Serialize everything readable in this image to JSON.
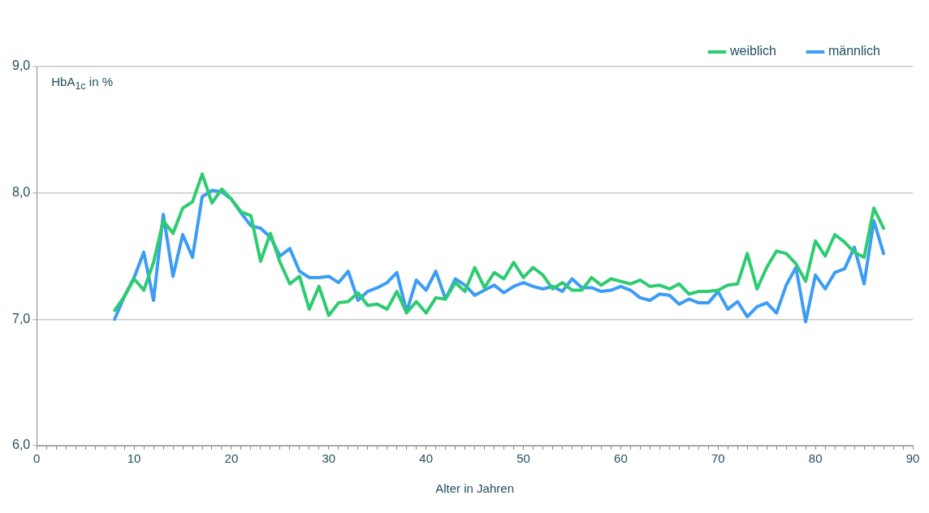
{
  "chart_data": {
    "type": "line",
    "xlabel": "Alter in Jahren",
    "ylabel": "HbA$_{1c}$ in %",
    "x": [
      8,
      9,
      10,
      11,
      12,
      13,
      14,
      15,
      16,
      17,
      18,
      19,
      20,
      21,
      22,
      23,
      24,
      25,
      26,
      27,
      28,
      29,
      30,
      31,
      32,
      33,
      34,
      35,
      36,
      37,
      38,
      39,
      40,
      41,
      42,
      43,
      44,
      45,
      46,
      47,
      48,
      49,
      50,
      51,
      52,
      53,
      54,
      55,
      56,
      57,
      58,
      59,
      60,
      61,
      62,
      63,
      64,
      65,
      66,
      67,
      68,
      69,
      70,
      71,
      72,
      73,
      74,
      75,
      76,
      77,
      78,
      79,
      80,
      81,
      82,
      83,
      84,
      85,
      86,
      87
    ],
    "series": [
      {
        "name": "weiblich",
        "color": "#2ecc71",
        "values": [
          7.07,
          7.18,
          7.32,
          7.23,
          7.45,
          7.78,
          7.68,
          7.88,
          7.93,
          8.15,
          7.92,
          8.03,
          7.95,
          7.85,
          7.82,
          7.46,
          7.68,
          7.45,
          7.28,
          7.34,
          7.08,
          7.26,
          7.03,
          7.13,
          7.14,
          7.21,
          7.11,
          7.12,
          7.08,
          7.22,
          7.05,
          7.14,
          7.05,
          7.17,
          7.16,
          7.29,
          7.22,
          7.41,
          7.25,
          7.37,
          7.32,
          7.45,
          7.33,
          7.41,
          7.35,
          7.24,
          7.29,
          7.23,
          7.23,
          7.33,
          7.27,
          7.32,
          7.3,
          7.28,
          7.31,
          7.26,
          7.27,
          7.24,
          7.28,
          7.2,
          7.22,
          7.22,
          7.23,
          7.27,
          7.28,
          7.52,
          7.24,
          7.41,
          7.54,
          7.52,
          7.44,
          7.3,
          7.62,
          7.5,
          7.67,
          7.61,
          7.53,
          7.49,
          7.88,
          7.72
        ]
      },
      {
        "name": "männlich",
        "color": "#3d9cf5",
        "values": [
          7.0,
          7.18,
          7.33,
          7.53,
          7.15,
          7.83,
          7.34,
          7.67,
          7.49,
          7.97,
          8.02,
          8.01,
          7.95,
          7.84,
          7.74,
          7.72,
          7.65,
          7.5,
          7.56,
          7.38,
          7.33,
          7.33,
          7.34,
          7.29,
          7.38,
          7.15,
          7.22,
          7.25,
          7.29,
          7.37,
          7.06,
          7.31,
          7.23,
          7.38,
          7.16,
          7.32,
          7.27,
          7.19,
          7.23,
          7.27,
          7.21,
          7.26,
          7.29,
          7.26,
          7.24,
          7.26,
          7.22,
          7.32,
          7.25,
          7.25,
          7.22,
          7.23,
          7.26,
          7.23,
          7.17,
          7.15,
          7.2,
          7.19,
          7.12,
          7.16,
          7.13,
          7.13,
          7.22,
          7.08,
          7.14,
          7.02,
          7.1,
          7.13,
          7.05,
          7.27,
          7.41,
          6.98,
          7.35,
          7.24,
          7.37,
          7.4,
          7.57,
          7.28,
          7.78,
          7.52
        ]
      }
    ],
    "xlim": [
      0,
      90
    ],
    "xticks": [
      0,
      {
        "value": 1,
        "label": null
      },
      {
        "value": 2,
        "label": null
      },
      {
        "value": 3,
        "label": null
      },
      {
        "value": 4,
        "label": null
      },
      {
        "value": 5,
        "label": null
      },
      {
        "value": 6,
        "label": null
      },
      {
        "value": 7,
        "label": null
      },
      {
        "value": 8,
        "label": null
      },
      {
        "value": 9,
        "label": null
      },
      10,
      {
        "value": 11,
        "label": null
      },
      {
        "value": 12,
        "label": null
      },
      {
        "value": 13,
        "label": null
      },
      {
        "value": 14,
        "label": null
      },
      {
        "value": 15,
        "label": null
      },
      {
        "value": 16,
        "label": null
      },
      {
        "value": 17,
        "label": null
      },
      {
        "value": 18,
        "label": null
      },
      {
        "value": 19,
        "label": null
      },
      20,
      {
        "value": 21,
        "label": null
      },
      {
        "value": 22,
        "label": null
      },
      {
        "value": 23,
        "label": null
      },
      {
        "value": 24,
        "label": null
      },
      {
        "value": 25,
        "label": null
      },
      {
        "value": 26,
        "label": null
      },
      {
        "value": 27,
        "label": null
      },
      {
        "value": 28,
        "label": null
      },
      {
        "value": 29,
        "label": null
      },
      30,
      {
        "value": 31,
        "label": null
      },
      {
        "value": 32,
        "label": null
      },
      {
        "value": 33,
        "label": null
      },
      {
        "value": 34,
        "label": null
      },
      {
        "value": 35,
        "label": null
      },
      {
        "value": 36,
        "label": null
      },
      {
        "value": 37,
        "label": null
      },
      {
        "value": 38,
        "label": null
      },
      {
        "value": 39,
        "label": null
      },
      40,
      {
        "value": 41,
        "label": null
      },
      {
        "value": 42,
        "label": null
      },
      {
        "value": 43,
        "label": null
      },
      {
        "value": 44,
        "label": null
      },
      {
        "value": 45,
        "label": null
      },
      {
        "value": 46,
        "label": null
      },
      {
        "value": 47,
        "label": null
      },
      {
        "value": 48,
        "label": null
      },
      {
        "value": 49,
        "label": null
      },
      50,
      {
        "value": 51,
        "label": null
      },
      {
        "value": 52,
        "label": null
      },
      {
        "value": 53,
        "label": null
      },
      {
        "value": 54,
        "label": null
      },
      {
        "value": 55,
        "label": null
      },
      {
        "value": 56,
        "label": null
      },
      {
        "value": 57,
        "label": null
      },
      {
        "value": 58,
        "label": null
      },
      {
        "value": 59,
        "label": null
      },
      60,
      {
        "value": 61,
        "label": null
      },
      {
        "value": 62,
        "label": null
      },
      {
        "value": 63,
        "label": null
      },
      {
        "value": 64,
        "label": null
      },
      {
        "value": 65,
        "label": null
      },
      {
        "value": 66,
        "label": null
      },
      {
        "value": 67,
        "label": null
      },
      {
        "value": 68,
        "label": null
      },
      {
        "value": 69,
        "label": null
      },
      70,
      {
        "value": 71,
        "label": null
      },
      {
        "value": 72,
        "label": null
      },
      {
        "value": 73,
        "label": null
      },
      {
        "value": 74,
        "label": null
      },
      {
        "value": 75,
        "label": null
      },
      {
        "value": 76,
        "label": null
      },
      {
        "value": 77,
        "label": null
      },
      {
        "value": 78,
        "label": null
      },
      {
        "value": 79,
        "label": null
      },
      80,
      {
        "value": 81,
        "label": null
      },
      {
        "value": 82,
        "label": null
      },
      {
        "value": 83,
        "label": null
      },
      {
        "value": 84,
        "label": null
      },
      {
        "value": 85,
        "label": null
      },
      {
        "value": 86,
        "label": null
      },
      {
        "value": 87,
        "label": null
      },
      {
        "value": 88,
        "label": null
      },
      {
        "value": 89,
        "label": null
      },
      90
    ],
    "ylim": [
      6,
      9
    ],
    "yticks": [
      {
        "value": 6,
        "label": "6,0"
      },
      {
        "value": 7,
        "label": "7,0"
      },
      {
        "value": 8,
        "label": "8,0"
      },
      {
        "value": 9,
        "label": "9,0"
      }
    ],
    "grid": "y",
    "legend": "top right",
    "marker": "none",
    "line_style": "solid"
  }
}
